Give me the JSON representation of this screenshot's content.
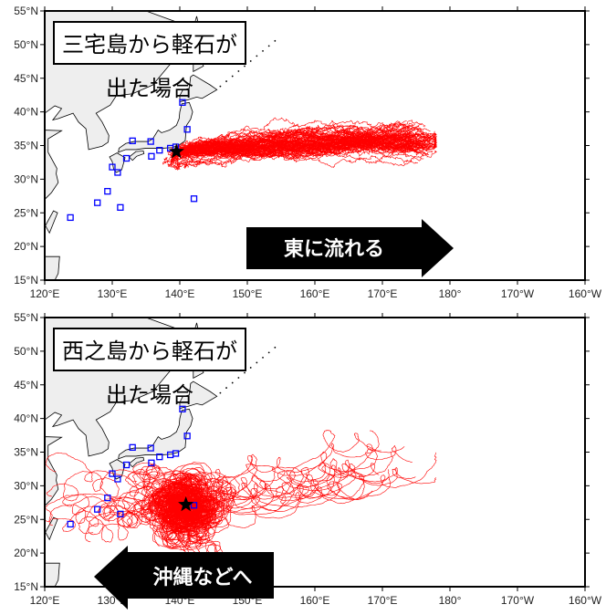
{
  "panels": [
    {
      "title": "三宅島から軽石が出た場合",
      "arrow_label": "東に流れる",
      "arrow_direction": "right",
      "source": {
        "lon": 139.5,
        "lat": 34.1
      },
      "spread": "east"
    },
    {
      "title": "西之島から軽石が出た場合",
      "arrow_label": "沖縄などへ",
      "arrow_direction": "left",
      "source": {
        "lon": 140.9,
        "lat": 27.2
      },
      "spread": "loop"
    }
  ],
  "axes": {
    "lon_range": [
      120,
      200
    ],
    "lat_range": [
      15,
      55
    ],
    "lon_ticks": [
      {
        "v": 120,
        "label": "120°E"
      },
      {
        "v": 130,
        "label": "130°E"
      },
      {
        "v": 140,
        "label": "140°E"
      },
      {
        "v": 150,
        "label": "150°E"
      },
      {
        "v": 160,
        "label": "160°E"
      },
      {
        "v": 170,
        "label": "170°E"
      },
      {
        "v": 180,
        "label": "180°"
      },
      {
        "v": 190,
        "label": "170°W"
      },
      {
        "v": 200,
        "label": "160°W"
      }
    ],
    "lat_ticks": [
      {
        "v": 15,
        "label": "15°N"
      },
      {
        "v": 20,
        "label": "20°N"
      },
      {
        "v": 25,
        "label": "25°N"
      },
      {
        "v": 30,
        "label": "30°N"
      },
      {
        "v": 35,
        "label": "35°N"
      },
      {
        "v": 40,
        "label": "40°N"
      },
      {
        "v": 45,
        "label": "45°N"
      },
      {
        "v": 50,
        "label": "50°N"
      },
      {
        "v": 55,
        "label": "55°N"
      }
    ]
  },
  "stations": [
    [
      140.4,
      41.4
    ],
    [
      141.1,
      37.4
    ],
    [
      139.4,
      34.8
    ],
    [
      138.6,
      34.6
    ],
    [
      137,
      34.3
    ],
    [
      135.7,
      35.6
    ],
    [
      135.8,
      33.4
    ],
    [
      133,
      35.7
    ],
    [
      132.1,
      33.1
    ],
    [
      130,
      31.8
    ],
    [
      130.8,
      31
    ],
    [
      129.3,
      28.2
    ],
    [
      127.8,
      26.5
    ],
    [
      131.2,
      25.8
    ],
    [
      123.8,
      24.3
    ],
    [
      142.1,
      27.1
    ]
  ],
  "colors": {
    "trajectory": "#ff0000",
    "station": "#0000ff",
    "land": "#eeeeee",
    "source_marker": "#000000",
    "arrow": "#000000"
  },
  "icons": {
    "source_marker": "star-icon",
    "station": "square-icon"
  }
}
